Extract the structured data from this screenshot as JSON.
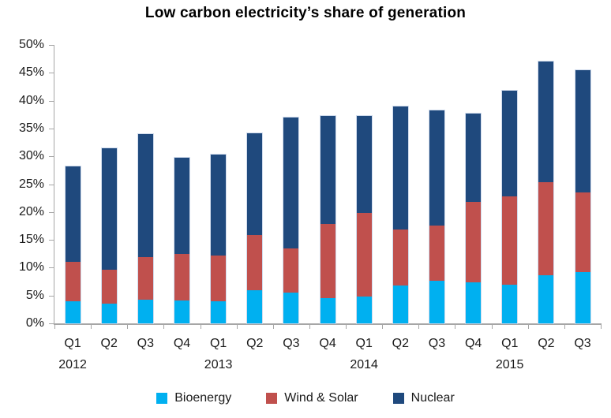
{
  "chart_data": {
    "type": "bar",
    "stacked": true,
    "title": "Low carbon electricity’s share of generation",
    "categories": [
      "Q1",
      "Q2",
      "Q3",
      "Q4",
      "Q1",
      "Q2",
      "Q3",
      "Q4",
      "Q1",
      "Q2",
      "Q3",
      "Q4",
      "Q1",
      "Q2",
      "Q3"
    ],
    "year_labels": [
      {
        "label": "2012",
        "category_index": 0
      },
      {
        "label": "2013",
        "category_index": 4
      },
      {
        "label": "2014",
        "category_index": 8
      },
      {
        "label": "2015",
        "category_index": 12
      }
    ],
    "series": [
      {
        "name": "Bioenergy",
        "color": "#00B0F0",
        "values": [
          4.0,
          3.6,
          4.2,
          4.1,
          4.0,
          5.9,
          5.5,
          4.6,
          4.8,
          6.8,
          7.7,
          7.3,
          7.0,
          8.7,
          9.2
        ]
      },
      {
        "name": "Wind & Solar",
        "color": "#C0504D",
        "values": [
          7.0,
          6.0,
          7.7,
          8.4,
          8.2,
          9.9,
          7.9,
          13.3,
          15.0,
          10.0,
          9.8,
          14.5,
          15.8,
          16.7,
          14.3
        ]
      },
      {
        "name": "Nuclear",
        "color": "#1F497D",
        "values": [
          17.2,
          21.8,
          22.1,
          17.3,
          18.1,
          18.4,
          23.6,
          19.4,
          17.5,
          22.1,
          20.7,
          15.9,
          19.0,
          21.7,
          22.0
        ]
      }
    ],
    "totals": [
      28.2,
      31.4,
      34.0,
      29.8,
      30.3,
      34.2,
      37.0,
      37.3,
      37.3,
      38.9,
      38.2,
      37.7,
      41.8,
      47.1,
      45.5
    ],
    "ylim": [
      0,
      50
    ],
    "ytick_step": 5,
    "ytick_labels": [
      "0%",
      "5%",
      "10%",
      "15%",
      "20%",
      "25%",
      "30%",
      "35%",
      "40%",
      "45%",
      "50%"
    ],
    "grid": false,
    "legend_position": "bottom",
    "axis_color": "#A6A6A6",
    "text_color": "#1A1A1A"
  }
}
